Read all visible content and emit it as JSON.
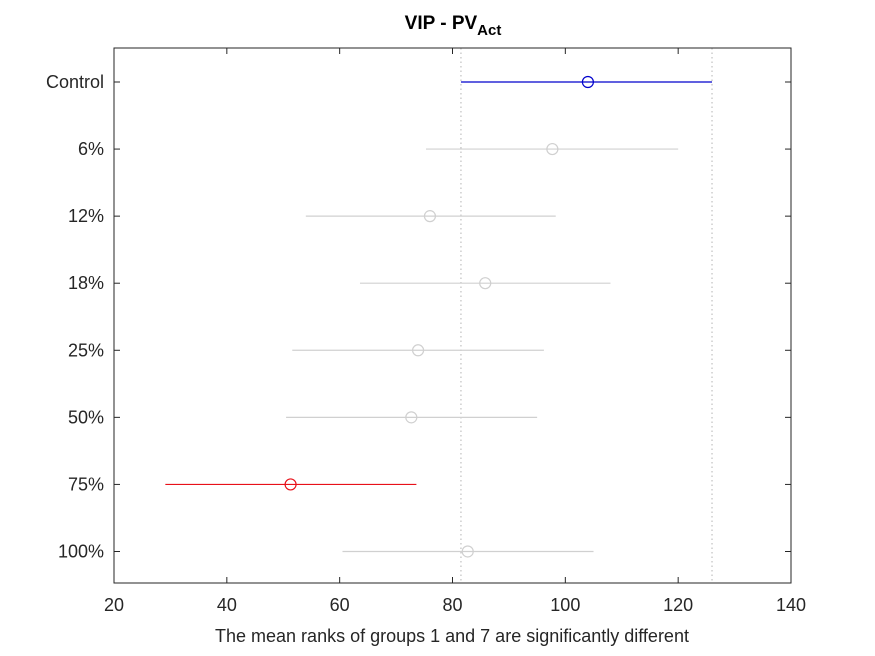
{
  "chart_data": {
    "type": "multiple-comparison-interval",
    "title_main": "VIP - PV",
    "title_subscript": "Act",
    "xlabel": "The mean ranks of groups 1 and 7 are significantly different",
    "ylabel": "",
    "xlim": [
      20,
      140
    ],
    "xticks": [
      20,
      40,
      60,
      80,
      100,
      120,
      140
    ],
    "grid": false,
    "reference_lines_x": [
      81.5,
      126
    ],
    "groups": [
      {
        "label": "Control",
        "mean": 104,
        "lower": 81.5,
        "upper": 126,
        "color": "#0000cc"
      },
      {
        "label": "6%",
        "mean": 97.7,
        "lower": 75.3,
        "upper": 120,
        "color": "#d0d0d0"
      },
      {
        "label": "12%",
        "mean": 76,
        "lower": 54,
        "upper": 98.3,
        "color": "#d0d0d0"
      },
      {
        "label": "18%",
        "mean": 85.8,
        "lower": 63.6,
        "upper": 108,
        "color": "#d0d0d0"
      },
      {
        "label": "25%",
        "mean": 73.9,
        "lower": 51.6,
        "upper": 96.2,
        "color": "#d0d0d0"
      },
      {
        "label": "50%",
        "mean": 72.7,
        "lower": 50.5,
        "upper": 95,
        "color": "#d0d0d0"
      },
      {
        "label": "75%",
        "mean": 51.3,
        "lower": 29.1,
        "upper": 73.6,
        "color": "#e8111a"
      },
      {
        "label": "100%",
        "mean": 82.7,
        "lower": 60.5,
        "upper": 105,
        "color": "#d0d0d0"
      }
    ]
  }
}
